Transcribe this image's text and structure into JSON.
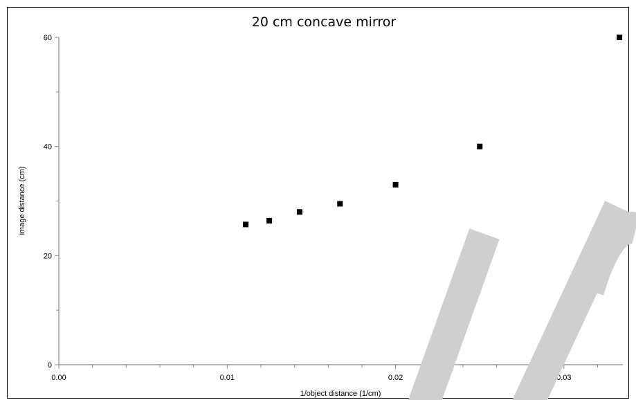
{
  "chart_data": {
    "type": "scatter",
    "title": "20 cm concave mirror",
    "xlabel": "1/object distance (1/cm)",
    "ylabel": "image distance (cm)",
    "xlim": [
      0,
      0.0335
    ],
    "ylim": [
      0,
      60
    ],
    "x_ticks": [
      "0.00",
      "0.01",
      "0.02",
      "0.03"
    ],
    "y_ticks": [
      "0",
      "20",
      "40",
      "60"
    ],
    "grid": false,
    "marker": "square",
    "marker_color": "#000000",
    "points": [
      {
        "x": 0.0111,
        "y": 25.7
      },
      {
        "x": 0.0125,
        "y": 26.4
      },
      {
        "x": 0.0143,
        "y": 28.0
      },
      {
        "x": 0.0167,
        "y": 29.5
      },
      {
        "x": 0.02,
        "y": 33.0
      },
      {
        "x": 0.025,
        "y": 40.0
      },
      {
        "x": 0.0333,
        "y": 60.0
      }
    ]
  },
  "watermark": {
    "color": "#cfcfcf"
  }
}
